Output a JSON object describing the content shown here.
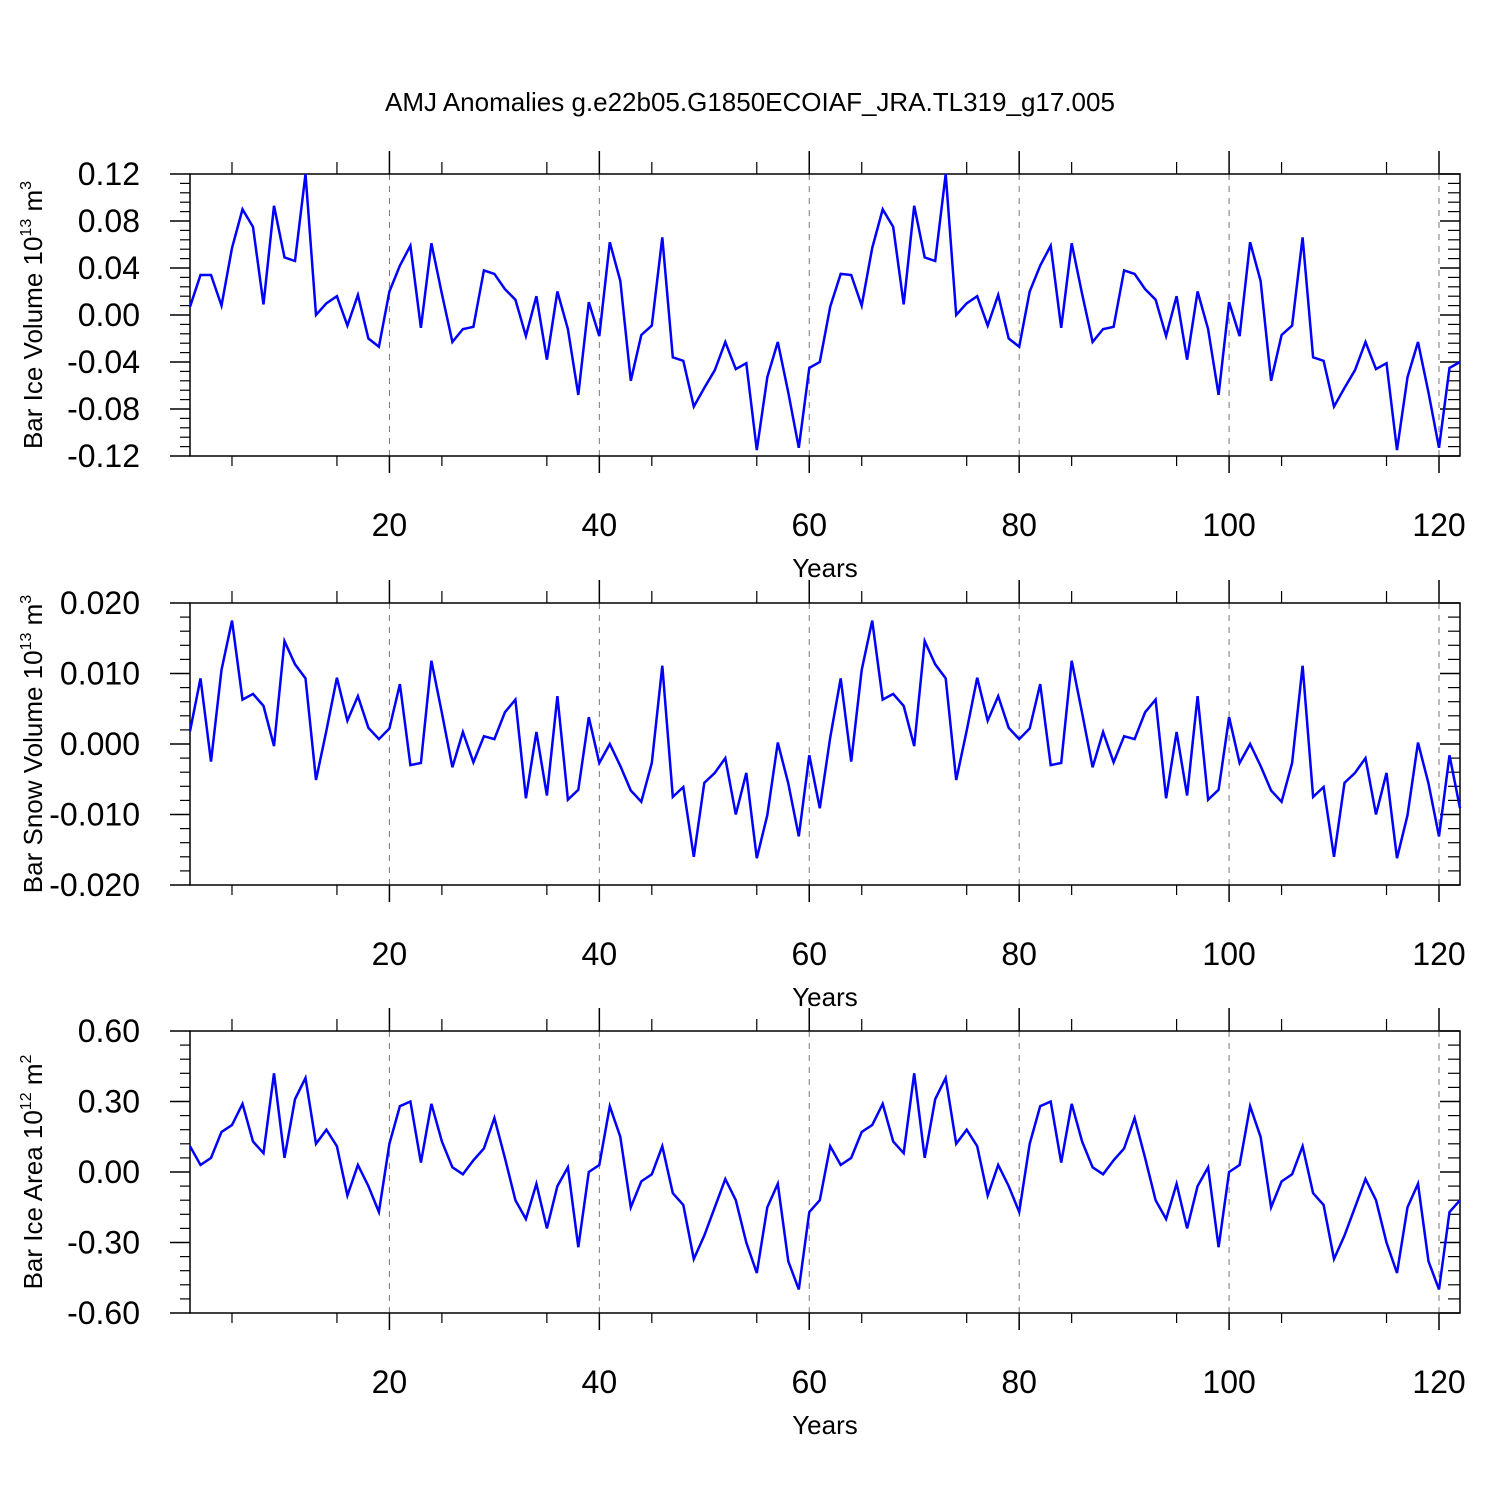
{
  "title": "AMJ Anomalies g.e22b05.G1850ECOIAF_JRA.TL319_g17.005",
  "colors": {
    "line": "#0000ff",
    "axis": "#000000",
    "grid": "#777777"
  },
  "chart_data": [
    {
      "type": "line",
      "ylabel": {
        "text": "Bar Ice Volume 10",
        "exp": "13",
        "unit": " m",
        "unit_exp": "3"
      },
      "xlabel": "Years",
      "xlim": [
        1,
        122
      ],
      "ylim": [
        -0.12,
        0.12
      ],
      "xticks": [
        "20",
        "40",
        "60",
        "80",
        "100",
        "120"
      ],
      "yticks": [
        "-0.12",
        "-0.08",
        "-0.04",
        "0.00",
        "0.04",
        "0.08",
        "0.12"
      ],
      "grid": "x-dashed",
      "x_start": 1,
      "values": [
        0.007,
        0.034,
        0.034,
        0.008,
        0.057,
        0.09,
        0.075,
        0.009,
        0.093,
        0.049,
        0.046,
        0.12,
        0.0,
        0.01,
        0.016,
        -0.009,
        0.017,
        -0.02,
        -0.027,
        0.02,
        0.042,
        0.059,
        -0.011,
        0.061,
        0.018,
        -0.023,
        -0.012,
        -0.01,
        0.038,
        0.035,
        0.022,
        0.013,
        -0.018,
        0.016,
        -0.038,
        0.02,
        -0.012,
        -0.068,
        0.011,
        -0.018,
        0.062,
        0.029,
        -0.056,
        -0.017,
        -0.009,
        0.066,
        -0.036,
        -0.039,
        -0.078,
        -0.062,
        -0.047,
        -0.023,
        -0.046,
        -0.041,
        -0.115,
        -0.053,
        -0.023,
        -0.066,
        -0.113,
        -0.045,
        -0.04,
        0.007,
        0.035,
        0.034,
        0.008,
        0.057,
        0.09,
        0.075,
        0.009,
        0.093,
        0.049,
        0.046,
        0.12,
        0.0,
        0.01,
        0.016,
        -0.009,
        0.017,
        -0.02,
        -0.027,
        0.02,
        0.042,
        0.059,
        -0.011,
        0.061,
        0.018,
        -0.023,
        -0.012,
        -0.01,
        0.038,
        0.035,
        0.022,
        0.013,
        -0.018,
        0.016,
        -0.038,
        0.02,
        -0.012,
        -0.068,
        0.011,
        -0.018,
        0.062,
        0.029,
        -0.056,
        -0.017,
        -0.009,
        0.066,
        -0.036,
        -0.039,
        -0.078,
        -0.062,
        -0.047,
        -0.023,
        -0.046,
        -0.041,
        -0.115,
        -0.053,
        -0.023,
        -0.066,
        -0.113,
        -0.045,
        -0.04
      ]
    },
    {
      "type": "line",
      "ylabel": {
        "text": "Bar Snow Volume 10",
        "exp": "13",
        "unit": " m",
        "unit_exp": "3"
      },
      "xlabel": "Years",
      "xlim": [
        1,
        122
      ],
      "ylim": [
        -0.02,
        0.02
      ],
      "xticks": [
        "20",
        "40",
        "60",
        "80",
        "100",
        "120"
      ],
      "yticks": [
        "-0.020",
        "-0.010",
        "0.000",
        "0.010",
        "0.020"
      ],
      "grid": "x-dashed",
      "x_start": 1,
      "values": [
        0.0018,
        0.0093,
        -0.0025,
        0.0105,
        0.0175,
        0.0063,
        0.0071,
        0.0054,
        -0.0003,
        0.0146,
        0.0113,
        0.0093,
        -0.0051,
        0.0019,
        0.0094,
        0.0033,
        0.0068,
        0.0023,
        0.0007,
        0.0022,
        0.0085,
        -0.003,
        -0.0027,
        0.0118,
        0.0044,
        -0.0033,
        0.0017,
        -0.0026,
        0.0011,
        0.0007,
        0.0045,
        0.0063,
        -0.0077,
        0.0017,
        -0.0073,
        0.0068,
        -0.0079,
        -0.0065,
        0.0038,
        -0.0027,
        0.0,
        -0.0031,
        -0.0066,
        -0.0082,
        -0.0027,
        0.0111,
        -0.0075,
        -0.0061,
        -0.016,
        -0.0055,
        -0.0041,
        -0.002,
        -0.01,
        -0.0041,
        -0.0162,
        -0.0101,
        0.0002,
        -0.0056,
        -0.0131,
        -0.0016,
        -0.0091,
        0.0009,
        0.0093,
        -0.0025,
        0.0105,
        0.0175,
        0.0063,
        0.0071,
        0.0054,
        -0.0003,
        0.0146,
        0.0113,
        0.0093,
        -0.0051,
        0.0019,
        0.0094,
        0.0033,
        0.0068,
        0.0023,
        0.0007,
        0.0022,
        0.0085,
        -0.003,
        -0.0027,
        0.0118,
        0.0044,
        -0.0033,
        0.0017,
        -0.0026,
        0.0011,
        0.0007,
        0.0045,
        0.0063,
        -0.0077,
        0.0017,
        -0.0073,
        0.0068,
        -0.0079,
        -0.0065,
        0.0038,
        -0.0027,
        0.0,
        -0.0031,
        -0.0066,
        -0.0082,
        -0.0027,
        0.0111,
        -0.0075,
        -0.0061,
        -0.016,
        -0.0055,
        -0.0041,
        -0.002,
        -0.01,
        -0.0041,
        -0.0162,
        -0.0101,
        0.0002,
        -0.0056,
        -0.0131,
        -0.0016,
        -0.0091
      ]
    },
    {
      "type": "line",
      "ylabel": {
        "text": "Bar Ice Area 10",
        "exp": "12",
        "unit": " m",
        "unit_exp": "2"
      },
      "xlabel": "Years",
      "xlim": [
        1,
        122
      ],
      "ylim": [
        -0.6,
        0.6
      ],
      "xticks": [
        "20",
        "40",
        "60",
        "80",
        "100",
        "120"
      ],
      "yticks": [
        "-0.60",
        "-0.30",
        "0.00",
        "0.30",
        "0.60"
      ],
      "grid": "x-dashed",
      "x_start": 1,
      "values": [
        0.11,
        0.03,
        0.06,
        0.17,
        0.2,
        0.29,
        0.13,
        0.08,
        0.42,
        0.06,
        0.31,
        0.4,
        0.12,
        0.18,
        0.11,
        -0.1,
        0.03,
        -0.06,
        -0.17,
        0.12,
        0.28,
        0.3,
        0.04,
        0.29,
        0.13,
        0.02,
        -0.01,
        0.05,
        0.1,
        0.23,
        0.06,
        -0.12,
        -0.2,
        -0.05,
        -0.24,
        -0.06,
        0.02,
        -0.32,
        -0.0,
        0.03,
        0.28,
        0.15,
        -0.15,
        -0.04,
        -0.01,
        0.11,
        -0.09,
        -0.14,
        -0.37,
        -0.27,
        -0.15,
        -0.03,
        -0.12,
        -0.3,
        -0.43,
        -0.15,
        -0.05,
        -0.38,
        -0.5,
        -0.17,
        -0.12,
        0.11,
        0.03,
        0.06,
        0.17,
        0.2,
        0.29,
        0.13,
        0.08,
        0.42,
        0.06,
        0.31,
        0.4,
        0.12,
        0.18,
        0.11,
        -0.1,
        0.03,
        -0.06,
        -0.17,
        0.12,
        0.28,
        0.3,
        0.04,
        0.29,
        0.13,
        0.02,
        -0.01,
        0.05,
        0.1,
        0.23,
        0.06,
        -0.12,
        -0.2,
        -0.05,
        -0.24,
        -0.06,
        0.02,
        -0.32,
        -0.0,
        0.03,
        0.28,
        0.15,
        -0.15,
        -0.04,
        -0.01,
        0.11,
        -0.09,
        -0.14,
        -0.37,
        -0.27,
        -0.15,
        -0.03,
        -0.12,
        -0.3,
        -0.43,
        -0.15,
        -0.05,
        -0.38,
        -0.5,
        -0.17,
        -0.12
      ]
    }
  ]
}
